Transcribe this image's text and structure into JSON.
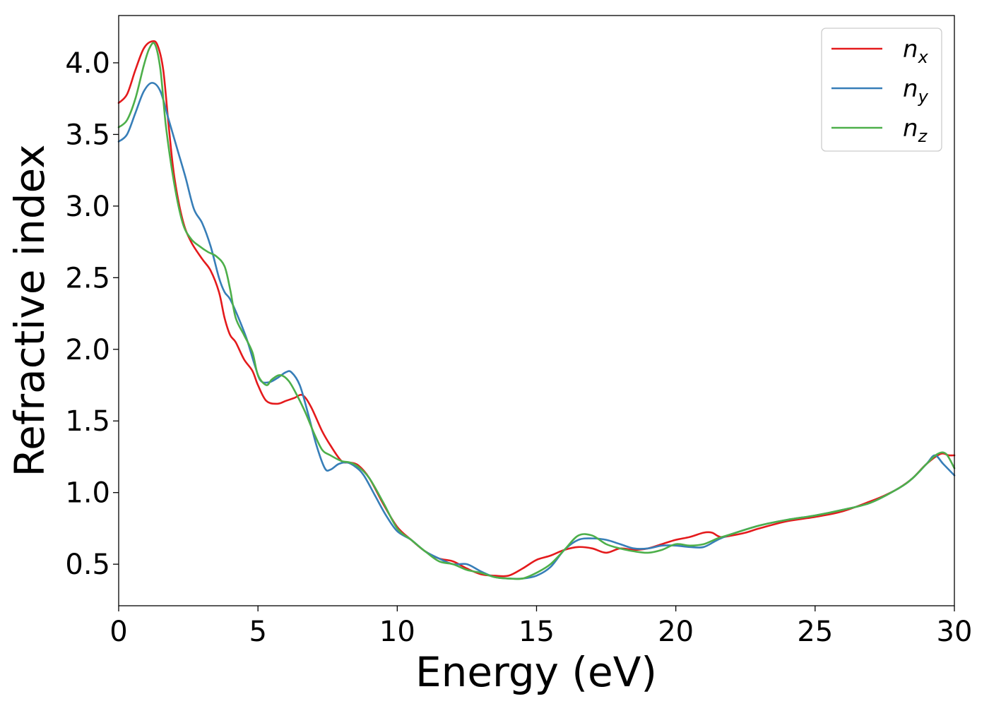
{
  "chart_data": {
    "type": "line",
    "xlabel": "Energy (eV)",
    "ylabel": "Refractive index",
    "xlim": [
      0,
      30
    ],
    "ylim": [
      0.21,
      4.33
    ],
    "xticks": [
      0,
      5,
      10,
      15,
      20,
      25,
      30
    ],
    "yticks": [
      0.5,
      1.0,
      1.5,
      2.0,
      2.5,
      3.0,
      3.5,
      4.0
    ],
    "grid": false,
    "legend_position": "top-right",
    "series": [
      {
        "name": "n",
        "sub": "x",
        "color": "#e41a1c",
        "x": [
          0,
          0.3,
          0.6,
          0.9,
          1.2,
          1.4,
          1.6,
          1.8,
          2.0,
          2.3,
          2.6,
          3.0,
          3.3,
          3.6,
          3.8,
          4.0,
          4.2,
          4.5,
          4.8,
          5.0,
          5.3,
          5.7,
          6.0,
          6.3,
          6.6,
          6.9,
          7.3,
          7.6,
          8.0,
          8.3,
          8.6,
          9.0,
          9.5,
          10.0,
          10.5,
          11.0,
          11.5,
          12.0,
          12.5,
          13.0,
          13.5,
          14.0,
          14.5,
          15.0,
          15.5,
          16.0,
          16.5,
          17.0,
          17.5,
          18.0,
          18.5,
          19.0,
          19.5,
          20.0,
          20.5,
          21.0,
          21.3,
          21.6,
          22.0,
          22.5,
          23.0,
          24.0,
          25.0,
          26.0,
          27.0,
          27.5,
          28.0,
          28.5,
          29.0,
          29.5,
          29.8,
          30.0
        ],
        "y": [
          3.72,
          3.78,
          3.95,
          4.1,
          4.15,
          4.12,
          3.95,
          3.55,
          3.2,
          2.9,
          2.75,
          2.63,
          2.55,
          2.4,
          2.22,
          2.1,
          2.05,
          1.93,
          1.85,
          1.75,
          1.64,
          1.62,
          1.64,
          1.66,
          1.68,
          1.6,
          1.43,
          1.33,
          1.22,
          1.21,
          1.19,
          1.1,
          0.92,
          0.76,
          0.67,
          0.59,
          0.54,
          0.52,
          0.47,
          0.43,
          0.42,
          0.42,
          0.47,
          0.53,
          0.56,
          0.6,
          0.62,
          0.61,
          0.58,
          0.61,
          0.6,
          0.61,
          0.64,
          0.67,
          0.69,
          0.72,
          0.72,
          0.69,
          0.7,
          0.72,
          0.75,
          0.8,
          0.83,
          0.87,
          0.94,
          0.98,
          1.03,
          1.1,
          1.2,
          1.27,
          1.26,
          1.26
        ]
      },
      {
        "name": "n",
        "sub": "y",
        "color": "#377eb8",
        "x": [
          0,
          0.3,
          0.6,
          0.9,
          1.2,
          1.5,
          1.8,
          2.1,
          2.4,
          2.7,
          3.0,
          3.3,
          3.6,
          3.8,
          4.0,
          4.3,
          4.6,
          4.9,
          5.1,
          5.4,
          5.7,
          6.0,
          6.2,
          6.5,
          6.8,
          7.1,
          7.4,
          7.6,
          7.9,
          8.2,
          8.5,
          8.8,
          9.2,
          9.6,
          10.0,
          10.5,
          11.0,
          11.5,
          12.0,
          12.5,
          13.0,
          13.5,
          14.0,
          14.5,
          15.0,
          15.5,
          16.0,
          16.5,
          17.0,
          17.5,
          18.0,
          18.5,
          19.0,
          19.5,
          20.0,
          20.5,
          21.0,
          21.5,
          22.0,
          23.0,
          24.0,
          25.0,
          26.0,
          27.0,
          28.0,
          28.5,
          29.0,
          29.3,
          29.6,
          30.0
        ],
        "y": [
          3.45,
          3.5,
          3.65,
          3.8,
          3.86,
          3.8,
          3.6,
          3.4,
          3.2,
          2.98,
          2.88,
          2.72,
          2.5,
          2.4,
          2.35,
          2.22,
          2.07,
          1.88,
          1.78,
          1.77,
          1.8,
          1.84,
          1.84,
          1.75,
          1.55,
          1.33,
          1.17,
          1.16,
          1.2,
          1.21,
          1.18,
          1.12,
          0.98,
          0.84,
          0.73,
          0.67,
          0.59,
          0.54,
          0.5,
          0.5,
          0.45,
          0.41,
          0.4,
          0.4,
          0.42,
          0.48,
          0.6,
          0.67,
          0.68,
          0.67,
          0.64,
          0.61,
          0.61,
          0.63,
          0.63,
          0.62,
          0.62,
          0.67,
          0.71,
          0.77,
          0.81,
          0.84,
          0.88,
          0.93,
          1.03,
          1.1,
          1.2,
          1.26,
          1.2,
          1.12
        ]
      },
      {
        "name": "n",
        "sub": "z",
        "color": "#4daf4a",
        "x": [
          0,
          0.3,
          0.6,
          0.9,
          1.1,
          1.3,
          1.5,
          1.7,
          2.0,
          2.3,
          2.6,
          2.9,
          3.2,
          3.5,
          3.8,
          4.0,
          4.2,
          4.5,
          4.8,
          5.0,
          5.3,
          5.5,
          5.8,
          6.1,
          6.4,
          6.7,
          7.0,
          7.3,
          7.6,
          8.0,
          8.3,
          8.6,
          9.0,
          9.5,
          10.0,
          10.5,
          11.0,
          11.5,
          12.0,
          12.5,
          13.0,
          13.5,
          14.0,
          14.5,
          15.0,
          15.5,
          16.0,
          16.5,
          17.0,
          17.5,
          18.0,
          18.5,
          19.0,
          19.5,
          20.0,
          20.5,
          21.0,
          21.5,
          22.0,
          23.0,
          24.0,
          25.0,
          26.0,
          27.0,
          28.0,
          28.5,
          29.0,
          29.4,
          29.7,
          30.0
        ],
        "y": [
          3.55,
          3.6,
          3.75,
          3.98,
          4.1,
          4.13,
          3.95,
          3.55,
          3.15,
          2.88,
          2.77,
          2.72,
          2.68,
          2.65,
          2.58,
          2.42,
          2.22,
          2.1,
          1.98,
          1.82,
          1.75,
          1.79,
          1.82,
          1.78,
          1.68,
          1.56,
          1.42,
          1.3,
          1.26,
          1.22,
          1.21,
          1.18,
          1.1,
          0.93,
          0.75,
          0.67,
          0.59,
          0.52,
          0.5,
          0.46,
          0.44,
          0.41,
          0.4,
          0.4,
          0.44,
          0.5,
          0.6,
          0.7,
          0.7,
          0.64,
          0.61,
          0.59,
          0.58,
          0.6,
          0.64,
          0.63,
          0.64,
          0.68,
          0.71,
          0.77,
          0.81,
          0.84,
          0.88,
          0.93,
          1.03,
          1.1,
          1.2,
          1.27,
          1.27,
          1.17
        ]
      }
    ]
  }
}
